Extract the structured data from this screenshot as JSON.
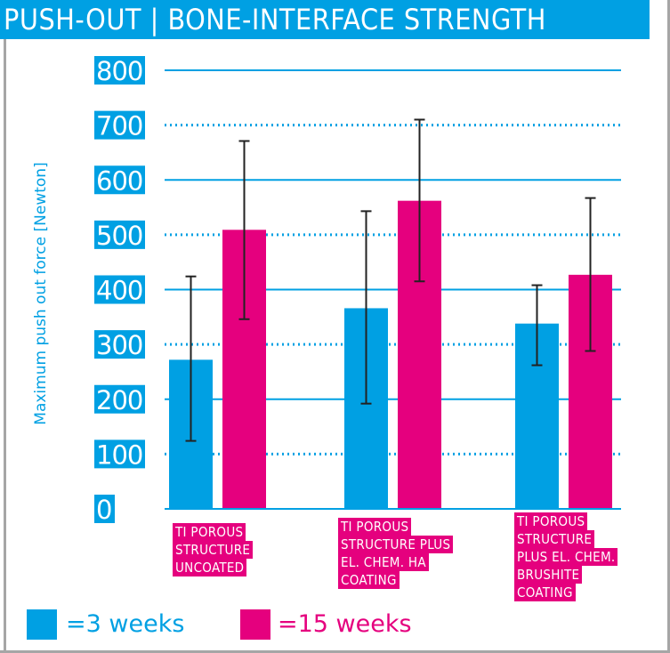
{
  "title": "PUSH-OUT | BONE-INTERFACE STRENGTH",
  "colors": {
    "accent_blue": "#00a0e3",
    "accent_pink": "#e5007e",
    "error_bar": "#222222"
  },
  "chart_data": {
    "type": "bar",
    "title": "PUSH-OUT | BONE-INTERFACE STRENGTH",
    "ylabel": "Maximum push out force [Newton]",
    "xlabel": "",
    "ylim": [
      0,
      800
    ],
    "yticks": [
      "0",
      "100",
      "200",
      "300",
      "400",
      "500",
      "600",
      "700",
      "800"
    ],
    "grid": "horizontal; solid at even hundreds, dotted at odd hundreds",
    "categories": [
      [
        "TI POROUS",
        "STRUCTURE",
        "UNCOATED"
      ],
      [
        "TI POROUS",
        "STRUCTURE PLUS",
        "EL. CHEM. HA",
        "COATING"
      ],
      [
        "TI POROUS",
        "STRUCTURE",
        "PLUS EL. CHEM.",
        "BRUSHITE",
        "COATING"
      ]
    ],
    "series": [
      {
        "name": "=3 weeks",
        "color": "#00a0e3",
        "values": [
          272,
          366,
          338
        ],
        "error_low": [
          124,
          192,
          262
        ],
        "error_high": [
          424,
          543,
          408
        ]
      },
      {
        "name": "=15 weeks",
        "color": "#e5007e",
        "values": [
          509,
          562,
          427
        ],
        "error_low": [
          346,
          415,
          288
        ],
        "error_high": [
          671,
          710,
          567
        ]
      }
    ],
    "legend_placement": "bottom"
  }
}
